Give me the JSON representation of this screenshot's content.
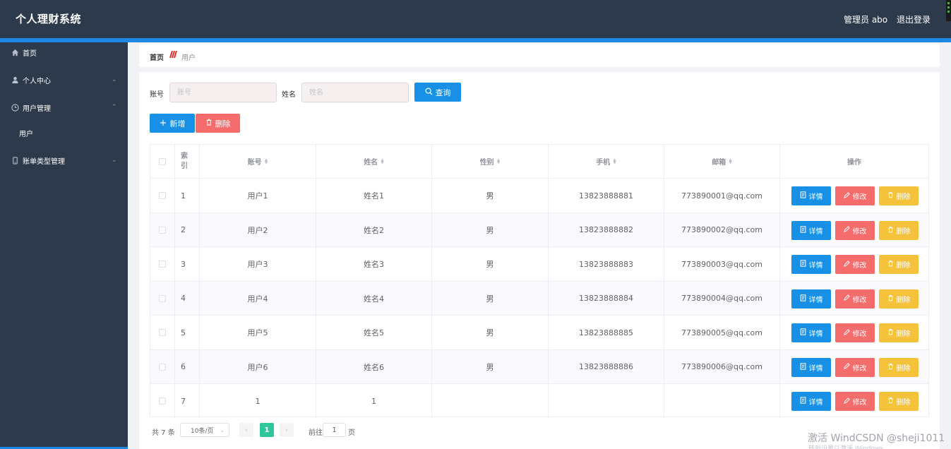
{
  "header": {
    "title": "个人理财系统",
    "admin": "管理员 abo",
    "logout": "退出登录"
  },
  "sidebar": {
    "items": [
      {
        "label": "首页",
        "icon": "home-icon"
      },
      {
        "label": "个人中心",
        "icon": "user-icon"
      },
      {
        "label": "用户管理",
        "icon": "clock-icon"
      },
      {
        "label": "用户",
        "icon": ""
      },
      {
        "label": "账单类型管理",
        "icon": "phone-icon"
      }
    ]
  },
  "breadcrumb": {
    "home": "首页",
    "current": "用户"
  },
  "search": {
    "account_label": "账号",
    "account_placeholder": "账号",
    "name_label": "姓名",
    "name_placeholder": "姓名",
    "query_label": "查询"
  },
  "toolbar": {
    "add_label": "新增",
    "delete_label": "删除"
  },
  "table": {
    "headers": {
      "index": "索引",
      "account": "账号",
      "name": "姓名",
      "gender": "性别",
      "phone": "手机",
      "email": "邮箱",
      "actions": "操作"
    },
    "action_labels": {
      "detail": "详情",
      "edit": "修改",
      "delete": "删除"
    },
    "rows": [
      {
        "index": "1",
        "account": "用户1",
        "name": "姓名1",
        "gender": "男",
        "phone": "13823888881",
        "email": "773890001@qq.com"
      },
      {
        "index": "2",
        "account": "用户2",
        "name": "姓名2",
        "gender": "男",
        "phone": "13823888882",
        "email": "773890002@qq.com"
      },
      {
        "index": "3",
        "account": "用户3",
        "name": "姓名3",
        "gender": "男",
        "phone": "13823888883",
        "email": "773890003@qq.com"
      },
      {
        "index": "4",
        "account": "用户4",
        "name": "姓名4",
        "gender": "男",
        "phone": "13823888884",
        "email": "773890004@qq.com"
      },
      {
        "index": "5",
        "account": "用户5",
        "name": "姓名5",
        "gender": "男",
        "phone": "13823888885",
        "email": "773890005@qq.com"
      },
      {
        "index": "6",
        "account": "用户6",
        "name": "姓名6",
        "gender": "男",
        "phone": "13823888886",
        "email": "773890006@qq.com"
      },
      {
        "index": "7",
        "account": "1",
        "name": "1",
        "gender": "",
        "phone": "",
        "email": ""
      }
    ]
  },
  "pagination": {
    "total": "共 7 条",
    "page_size": "10条/页",
    "current_page": "1",
    "goto_label": "前往",
    "goto_value": "1",
    "page_unit": "页"
  },
  "watermark": {
    "text": "激活 WindCSDN @sheji1011",
    "sub": "转到设置以激活 Windows"
  },
  "colors": {
    "header_bg": "#2d3a4b",
    "accent": "#1890e6",
    "danger": "#f56c6c",
    "warning": "#f5c33b",
    "page_active": "#2cc79b"
  }
}
